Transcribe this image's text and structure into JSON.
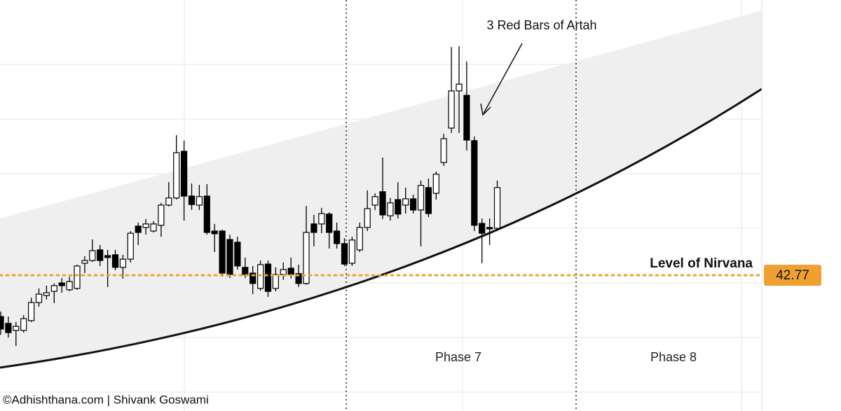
{
  "chart_data": {
    "type": "candlestick",
    "categories": [
      null,
      null,
      null,
      null,
      null,
      null,
      null,
      null,
      null,
      null,
      null,
      null,
      null,
      null,
      null,
      null,
      null,
      null,
      null,
      null,
      null,
      null,
      null,
      null,
      null,
      null,
      null,
      null,
      null,
      null,
      null,
      null,
      null,
      null,
      null,
      null,
      null,
      null,
      null,
      null,
      null,
      null,
      null,
      null,
      null,
      null,
      null,
      null,
      null,
      null,
      null,
      null,
      null,
      null,
      null,
      null,
      null,
      null,
      null,
      null,
      null,
      null,
      null,
      null,
      null,
      null
    ],
    "open": [
      41.26,
      41.01,
      40.75,
      40.75,
      41.11,
      41.77,
      42.03,
      42.18,
      42.49,
      42.24,
      42.29,
      43.21,
      43.31,
      43.7,
      43.49,
      43.52,
      43.06,
      43.36,
      44.57,
      44.52,
      44.39,
      44.6,
      45.34,
      45.6,
      47.31,
      45.67,
      45.34,
      45.67,
      44.39,
      44.39,
      44.08,
      43.98,
      43.06,
      42.85,
      42.29,
      43.18,
      42.29,
      42.8,
      43.03,
      42.83,
      42.47,
      44.65,
      44.65,
      45.01,
      44.39,
      43.93,
      43.21,
      43.7,
      44.52,
      45.34,
      45.83,
      44.95,
      45.54,
      45.34,
      45.57,
      45.16,
      45.98,
      45.77,
      46.9,
      48.16,
      49.52,
      49.36,
      47.7,
      44.67,
      44.52,
      44.49
    ],
    "high": [
      41.44,
      41.26,
      41.06,
      41.31,
      41.95,
      42.29,
      42.39,
      42.47,
      42.67,
      42.72,
      43.16,
      43.47,
      44.08,
      43.88,
      43.7,
      43.7,
      43.52,
      44.39,
      44.7,
      44.83,
      44.75,
      45.42,
      46.18,
      47.9,
      47.7,
      46.13,
      46.08,
      46.11,
      44.65,
      44.44,
      44.26,
      44.18,
      43.42,
      43.11,
      43.31,
      43.31,
      43.06,
      43.24,
      43.42,
      43.16,
      45.31,
      44.98,
      45.24,
      45.08,
      44.7,
      44.13,
      44.18,
      44.7,
      45.88,
      45.77,
      47.08,
      45.6,
      46.18,
      45.98,
      45.72,
      46.24,
      46.31,
      46.57,
      47.95,
      51.13,
      51.16,
      50.6,
      47.85,
      44.85,
      44.85,
      46.24
    ],
    "low": [
      40.59,
      40.49,
      40.18,
      40.67,
      41.06,
      41.62,
      41.88,
      41.75,
      42.13,
      42.18,
      42.24,
      42.85,
      43.26,
      43.11,
      42.34,
      42.95,
      42.65,
      43.24,
      43.88,
      44.26,
      44.34,
      44.18,
      45.29,
      45.54,
      44.77,
      45.16,
      45.16,
      44.26,
      43.62,
      42.72,
      42.67,
      42.98,
      42.67,
      42.08,
      42.21,
      41.98,
      42.18,
      42.6,
      42.65,
      42.34,
      42.42,
      43.83,
      44.31,
      43.75,
      43.75,
      43.11,
      43.11,
      43.62,
      44.39,
      45.16,
      44.83,
      44.77,
      44.85,
      45.03,
      45.03,
      43.83,
      44.9,
      45.54,
      46.77,
      47.98,
      47.98,
      47.34,
      44.39,
      43.21,
      43.88,
      44.39
    ],
    "close": [
      40.8,
      40.67,
      40.9,
      41.18,
      41.77,
      42.08,
      42.13,
      42.39,
      42.39,
      42.54,
      43.11,
      43.31,
      43.67,
      43.31,
      43.42,
      43.06,
      43.36,
      44.31,
      44.34,
      44.65,
      44.65,
      45.34,
      45.6,
      47.26,
      45.67,
      45.36,
      45.65,
      44.34,
      44.29,
      42.85,
      42.8,
      43.11,
      42.8,
      42.47,
      43.16,
      42.18,
      42.8,
      42.98,
      42.8,
      42.47,
      44.34,
      44.34,
      45.03,
      44.34,
      43.93,
      43.18,
      44.06,
      44.52,
      45.21,
      45.65,
      44.98,
      45.42,
      45.01,
      45.57,
      45.16,
      46.06,
      45.03,
      46.47,
      47.77,
      49.52,
      49.77,
      47.72,
      44.6,
      44.31,
      44.47,
      45.98
    ],
    "ylim": [
      37.8,
      52.85
    ],
    "up_color": "#ffffff",
    "down_color": "#000000",
    "level": {
      "label": "Level of Nirvana",
      "value": 42.77,
      "color": "#f0a030"
    },
    "annotation": "3 Red Bars of Artah",
    "phases": [
      "Phase 7",
      "Phase 8"
    ],
    "footer": "©Adhishthana.com | Shivank Goswami"
  }
}
